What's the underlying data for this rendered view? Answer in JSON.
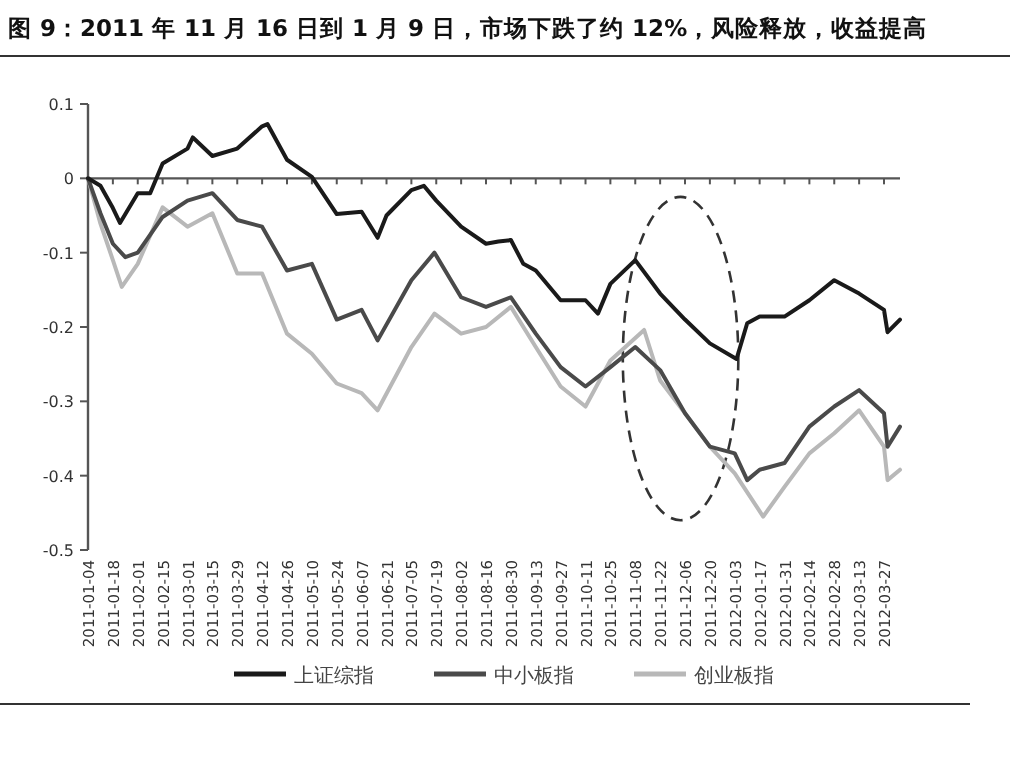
{
  "chart_data": {
    "type": "line",
    "title": "图 9：2011 年 11 月 16 日到 1 月 9 日，市场下跌了约 12%，风险释放，收益提高",
    "xlim": [
      "2011-01-04",
      "2012-04-05"
    ],
    "xticks": [
      {
        "value": "2011-01-04",
        "label": "2011-01-04"
      },
      {
        "value": "2011-01-18",
        "label": "2011-01-18"
      },
      {
        "value": "2011-02-01",
        "label": "2011-02-01"
      },
      {
        "value": "2011-02-15",
        "label": "2011-02-15"
      },
      {
        "value": "2011-03-01",
        "label": "2011-03-01"
      },
      {
        "value": "2011-03-15",
        "label": "2011-03-15"
      },
      {
        "value": "2011-03-29",
        "label": "2011-03-29"
      },
      {
        "value": "2011-04-12",
        "label": "2011-04-12"
      },
      {
        "value": "2011-04-26",
        "label": "2011-04-26"
      },
      {
        "value": "2011-05-10",
        "label": "2011-05-10"
      },
      {
        "value": "2011-05-24",
        "label": "2011-05-24"
      },
      {
        "value": "2011-06-07",
        "label": "2011-06-07"
      },
      {
        "value": "2011-06-21",
        "label": "2011-06-21"
      },
      {
        "value": "2011-07-05",
        "label": "2011-07-05"
      },
      {
        "value": "2011-07-19",
        "label": "2011-07-19"
      },
      {
        "value": "2011-08-02",
        "label": "2011-08-02"
      },
      {
        "value": "2011-08-16",
        "label": "2011-08-16"
      },
      {
        "value": "2011-08-30",
        "label": "2011-08-30"
      },
      {
        "value": "2011-09-13",
        "label": "2011-09-13"
      },
      {
        "value": "2011-09-27",
        "label": "2011-09-27"
      },
      {
        "value": "2011-10-11",
        "label": "2011-10-11"
      },
      {
        "value": "2011-10-25",
        "label": "2011-10-25"
      },
      {
        "value": "2011-11-08",
        "label": "2011-11-08"
      },
      {
        "value": "2011-11-22",
        "label": "2011-11-22"
      },
      {
        "value": "2011-12-06",
        "label": "2011-12-06"
      },
      {
        "value": "2011-12-20",
        "label": "2011-12-20"
      },
      {
        "value": "2012-01-03",
        "label": "2012-01-03"
      },
      {
        "value": "2012-01-17",
        "label": "2012-01-17"
      },
      {
        "value": "2012-01-31",
        "label": "2012-01-31"
      },
      {
        "value": "2012-02-14",
        "label": "2012-02-14"
      },
      {
        "value": "2012-02-28",
        "label": "2012-02-28"
      },
      {
        "value": "2012-03-13",
        "label": "2012-03-13"
      },
      {
        "value": "2012-03-27",
        "label": "2012-03-27"
      }
    ],
    "ylim": [
      -0.5,
      0.1
    ],
    "yticks": [
      0.1,
      0,
      -0.1,
      -0.2,
      -0.3,
      -0.4,
      -0.5
    ],
    "legend": "bottom",
    "marker": "none",
    "line_style": "solid",
    "series": [
      {
        "name": "上证综指",
        "color": "#1a1a1a",
        "x": [
          "2011-01-04",
          "2011-01-11",
          "2011-01-18",
          "2011-01-22",
          "2011-02-01",
          "2011-02-08",
          "2011-02-15",
          "2011-03-01",
          "2011-03-04",
          "2011-03-15",
          "2011-03-29",
          "2011-04-12",
          "2011-04-15",
          "2011-04-26",
          "2011-05-10",
          "2011-05-24",
          "2011-06-07",
          "2011-06-16",
          "2011-06-21",
          "2011-07-05",
          "2011-07-12",
          "2011-07-19",
          "2011-08-02",
          "2011-08-16",
          "2011-08-23",
          "2011-08-30",
          "2011-09-06",
          "2011-09-13",
          "2011-09-27",
          "2011-10-11",
          "2011-10-18",
          "2011-10-25",
          "2011-11-08",
          "2011-11-22",
          "2011-12-06",
          "2011-12-20",
          "2012-01-04",
          "2012-01-10",
          "2012-01-17",
          "2012-01-31",
          "2012-02-14",
          "2012-02-28",
          "2012-03-13",
          "2012-03-27",
          "2012-03-29",
          "2012-04-05"
        ],
        "values": [
          0,
          -0.01,
          -0.04,
          -0.06,
          -0.02,
          -0.02,
          0.02,
          0.04,
          0.055,
          0.03,
          0.04,
          0.07,
          0.073,
          0.025,
          0.002,
          -0.048,
          -0.045,
          -0.08,
          -0.05,
          -0.016,
          -0.01,
          -0.03,
          -0.065,
          -0.088,
          -0.085,
          -0.083,
          -0.115,
          -0.124,
          -0.164,
          -0.164,
          -0.182,
          -0.142,
          -0.11,
          -0.155,
          -0.19,
          -0.222,
          -0.243,
          -0.195,
          -0.186,
          -0.186,
          -0.164,
          -0.137,
          -0.155,
          -0.177,
          -0.207,
          -0.19
        ]
      },
      {
        "name": "中小板指",
        "color": "#4a4a4a",
        "x": [
          "2011-01-04",
          "2011-01-11",
          "2011-01-18",
          "2011-01-25",
          "2011-02-01",
          "2011-02-15",
          "2011-03-01",
          "2011-03-15",
          "2011-03-29",
          "2011-04-12",
          "2011-04-26",
          "2011-05-10",
          "2011-05-24",
          "2011-06-07",
          "2011-06-16",
          "2011-07-05",
          "2011-07-18",
          "2011-08-02",
          "2011-08-16",
          "2011-08-30",
          "2011-09-13",
          "2011-09-27",
          "2011-10-11",
          "2011-10-25",
          "2011-11-08",
          "2011-11-22",
          "2011-12-06",
          "2011-12-20",
          "2012-01-03",
          "2012-01-10",
          "2012-01-17",
          "2012-01-31",
          "2012-02-14",
          "2012-02-28",
          "2012-03-13",
          "2012-03-27",
          "2012-03-29",
          "2012-04-05"
        ],
        "values": [
          0,
          -0.047,
          -0.088,
          -0.106,
          -0.1,
          -0.052,
          -0.03,
          -0.02,
          -0.056,
          -0.065,
          -0.124,
          -0.115,
          -0.19,
          -0.177,
          -0.218,
          -0.137,
          -0.1,
          -0.16,
          -0.173,
          -0.16,
          -0.209,
          -0.254,
          -0.28,
          -0.254,
          -0.227,
          -0.258,
          -0.316,
          -0.361,
          -0.37,
          -0.406,
          -0.392,
          -0.383,
          -0.334,
          -0.307,
          -0.285,
          -0.316,
          -0.361,
          -0.334
        ]
      },
      {
        "name": "创业板指",
        "color": "#b8b8b8",
        "x": [
          "2011-01-04",
          "2011-01-11",
          "2011-01-18",
          "2011-01-23",
          "2011-02-01",
          "2011-02-15",
          "2011-03-01",
          "2011-03-15",
          "2011-03-29",
          "2011-04-12",
          "2011-04-26",
          "2011-05-10",
          "2011-05-24",
          "2011-06-07",
          "2011-06-16",
          "2011-07-05",
          "2011-07-18",
          "2011-08-02",
          "2011-08-16",
          "2011-08-30",
          "2011-09-13",
          "2011-09-27",
          "2011-10-11",
          "2011-10-25",
          "2011-11-13",
          "2011-11-22",
          "2011-12-06",
          "2011-12-20",
          "2012-01-03",
          "2012-01-19",
          "2012-01-31",
          "2012-02-14",
          "2012-02-28",
          "2012-03-13",
          "2012-03-27",
          "2012-03-29",
          "2012-04-05"
        ],
        "values": [
          0,
          -0.061,
          -0.11,
          -0.146,
          -0.115,
          -0.039,
          -0.065,
          -0.047,
          -0.128,
          -0.128,
          -0.209,
          -0.236,
          -0.276,
          -0.289,
          -0.312,
          -0.227,
          -0.182,
          -0.209,
          -0.2,
          -0.173,
          -0.227,
          -0.28,
          -0.307,
          -0.245,
          -0.204,
          -0.272,
          -0.316,
          -0.361,
          -0.397,
          -0.455,
          -0.415,
          -0.37,
          -0.343,
          -0.312,
          -0.361,
          -0.406,
          -0.392
        ]
      }
    ]
  }
}
